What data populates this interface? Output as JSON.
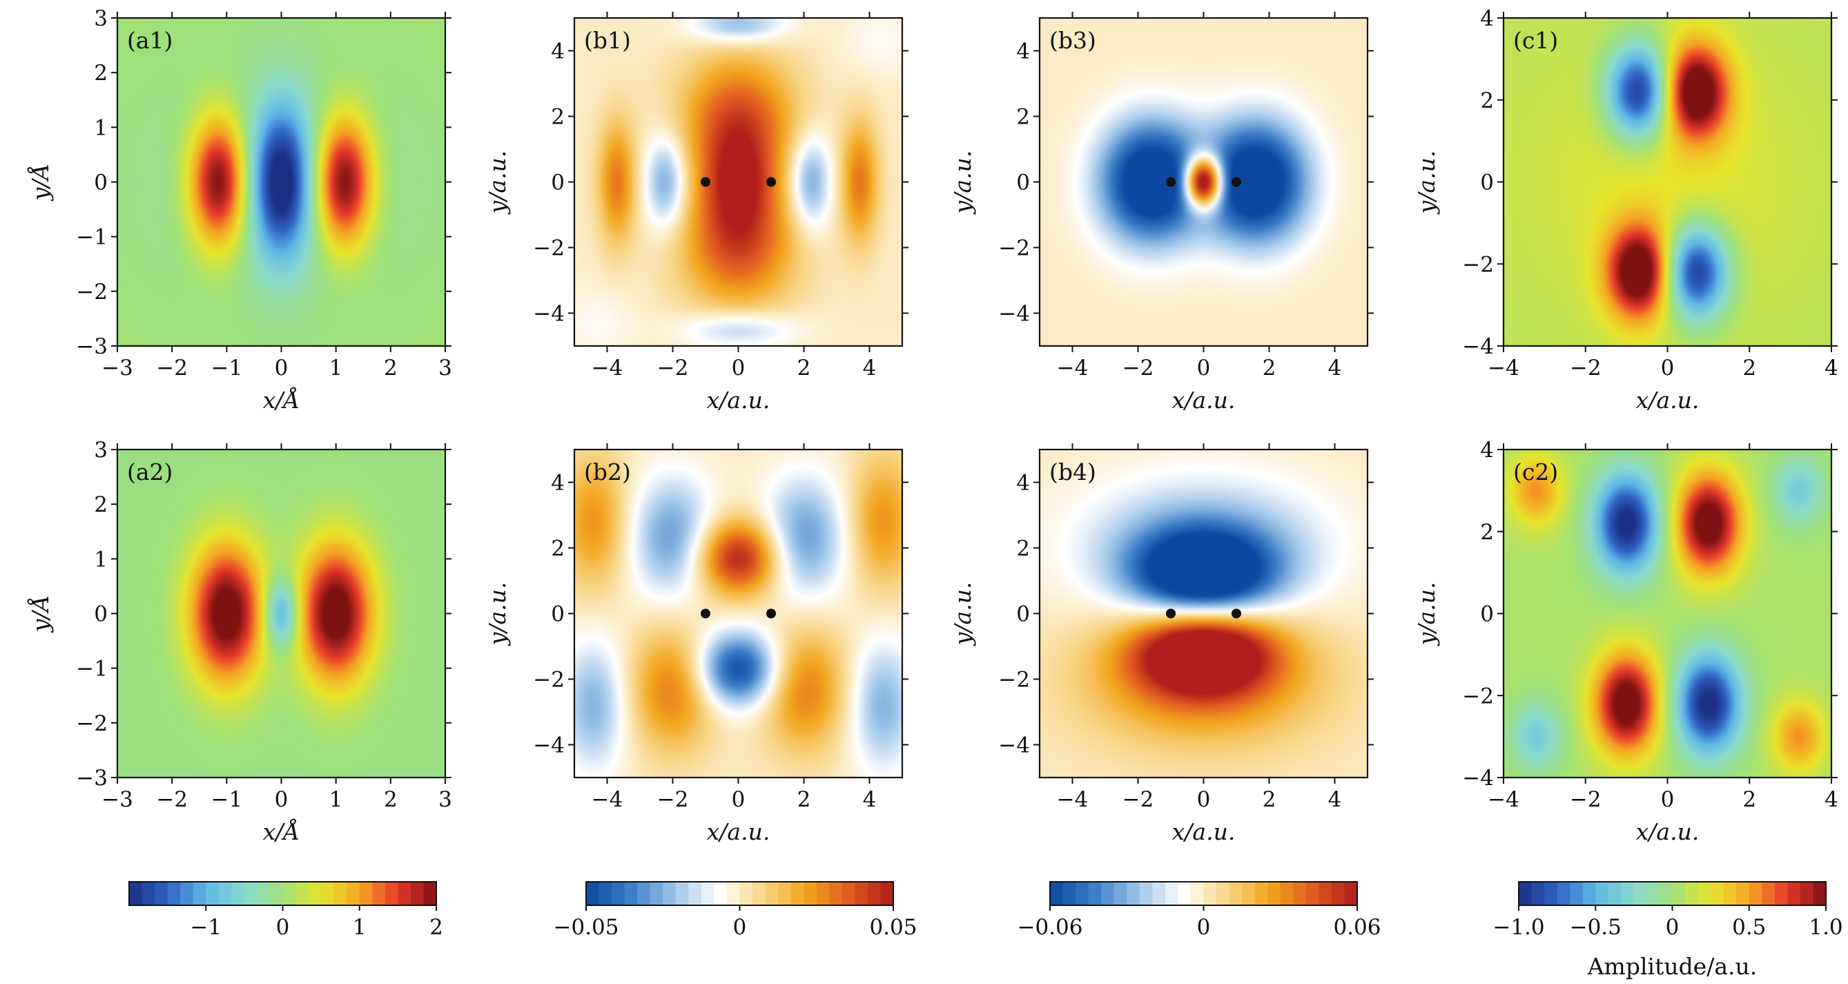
{
  "colormaps": {
    "jet": [
      "#1c2f84",
      "#2f63c4",
      "#5fb7e6",
      "#8ad9d0",
      "#9ee07a",
      "#e7e52c",
      "#f5a623",
      "#e6392b",
      "#7e1212"
    ],
    "bwr": [
      "#0d47a1",
      "#3b7dc6",
      "#9cc3e8",
      "#ffffff",
      "#f8d78a",
      "#f2a51e",
      "#e05a20",
      "#b01d1a"
    ]
  },
  "chart_data": [
    {
      "label": "(a1)",
      "type": "heatmap",
      "colormap": "jet",
      "xlabel": "x/Å",
      "ylabel": "y/Å",
      "xlim": [
        -3,
        3
      ],
      "ylim": [
        -3,
        3
      ],
      "xticks": [
        "−3",
        "−2",
        "−1",
        "0",
        "1",
        "2",
        "3"
      ],
      "yticks": [
        "−3",
        "−2",
        "−1",
        "0",
        "1",
        "2",
        "3"
      ],
      "clim": [
        -2,
        2
      ],
      "background": 0.05,
      "grid": false,
      "features": [
        {
          "x": -1.15,
          "y": 0,
          "sx": 0.38,
          "sy": 0.85,
          "amp": 2.2
        },
        {
          "x": 0,
          "y": 0,
          "sx": 0.38,
          "sy": 0.95,
          "amp": -2.0
        },
        {
          "x": 1.15,
          "y": 0,
          "sx": 0.38,
          "sy": 0.85,
          "amp": 2.2
        },
        {
          "x": 0,
          "y": 0,
          "sx": 1.9,
          "sy": 1.7,
          "amp": -0.35
        }
      ]
    },
    {
      "label": "(a2)",
      "type": "heatmap",
      "colormap": "jet",
      "xlabel": "x/Å",
      "ylabel": "y/Å",
      "xlim": [
        -3,
        3
      ],
      "ylim": [
        -3,
        3
      ],
      "xticks": [
        "−3",
        "−2",
        "−1",
        "0",
        "1",
        "2",
        "3"
      ],
      "yticks": [
        "−3",
        "−2",
        "−1",
        "0",
        "1",
        "2",
        "3"
      ],
      "clim": [
        -2,
        2
      ],
      "background": -0.05,
      "grid": false,
      "features": [
        {
          "x": -1.0,
          "y": 0,
          "sx": 0.48,
          "sy": 0.9,
          "amp": 2.3
        },
        {
          "x": 0,
          "y": 0,
          "sx": 0.22,
          "sy": 0.45,
          "amp": -1.3
        },
        {
          "x": 1.0,
          "y": 0,
          "sx": 0.48,
          "sy": 0.9,
          "amp": 2.3
        }
      ]
    },
    {
      "label": "(b1)",
      "type": "heatmap",
      "colormap": "bwr",
      "xlabel": "x/a.u.",
      "ylabel": "y/a.u.",
      "xlim": [
        -5,
        5
      ],
      "ylim": [
        -5,
        5
      ],
      "xticks": [
        "−4",
        "−2",
        "0",
        "2",
        "4"
      ],
      "yticks": [
        "−4",
        "−2",
        "0",
        "2",
        "4"
      ],
      "clim": [
        -0.05,
        0.05
      ],
      "background": 0,
      "grid": false,
      "nuclei": [
        {
          "x": -1,
          "y": 0
        },
        {
          "x": 1,
          "y": 0
        }
      ],
      "features": [
        {
          "x": 0,
          "y": 1.8,
          "sx": 1.2,
          "sy": 1.4,
          "amp": 0.04
        },
        {
          "x": 0,
          "y": -1.8,
          "sx": 1.2,
          "sy": 1.4,
          "amp": 0.04
        },
        {
          "x": 0,
          "y": 0,
          "sx": 0.7,
          "sy": 1.0,
          "amp": 0.025
        },
        {
          "x": -2.2,
          "y": 0,
          "sx": 0.45,
          "sy": 1.0,
          "amp": -0.03
        },
        {
          "x": 2.2,
          "y": 0,
          "sx": 0.45,
          "sy": 1.0,
          "amp": -0.03
        },
        {
          "x": -3.7,
          "y": 0,
          "sx": 0.4,
          "sy": 1.3,
          "amp": 0.03
        },
        {
          "x": 3.7,
          "y": 0,
          "sx": 0.4,
          "sy": 1.3,
          "amp": 0.03
        },
        {
          "x": 0,
          "y": 4.8,
          "sx": 1.0,
          "sy": 0.4,
          "amp": -0.025
        },
        {
          "x": 0,
          "y": -4.5,
          "sx": 1.2,
          "sy": 0.4,
          "amp": -0.02
        },
        {
          "x": -4.3,
          "y": -4.3,
          "sx": 0.8,
          "sy": 0.8,
          "amp": -0.006
        },
        {
          "x": 4.3,
          "y": 4.3,
          "sx": 0.8,
          "sy": 0.8,
          "amp": -0.006
        }
      ]
    },
    {
      "label": "(b2)",
      "type": "heatmap",
      "colormap": "bwr",
      "xlabel": "x/a.u.",
      "ylabel": "y/a.u.",
      "xlim": [
        -5,
        5
      ],
      "ylim": [
        -5,
        5
      ],
      "xticks": [
        "−4",
        "−2",
        "0",
        "2",
        "4"
      ],
      "yticks": [
        "−4",
        "−2",
        "0",
        "2",
        "4"
      ],
      "clim": [
        -0.05,
        0.05
      ],
      "background": 0,
      "grid": false,
      "nuclei": [
        {
          "x": -1,
          "y": 0
        },
        {
          "x": 1,
          "y": 0
        }
      ],
      "features": [
        {
          "x": 0,
          "y": 1.7,
          "sx": 0.9,
          "sy": 0.8,
          "amp": 0.05
        },
        {
          "x": 0,
          "y": -1.7,
          "sx": 0.9,
          "sy": 0.8,
          "amp": -0.05
        },
        {
          "x": -2.0,
          "y": 2.3,
          "sx": 0.9,
          "sy": 1.3,
          "amp": -0.03
        },
        {
          "x": 2.0,
          "y": 2.3,
          "sx": 0.9,
          "sy": 1.3,
          "amp": -0.03
        },
        {
          "x": -2.0,
          "y": -2.3,
          "sx": 0.9,
          "sy": 1.3,
          "amp": 0.03
        },
        {
          "x": 2.0,
          "y": -2.3,
          "sx": 0.9,
          "sy": 1.3,
          "amp": 0.03
        },
        {
          "x": -4.4,
          "y": 2.8,
          "sx": 0.7,
          "sy": 1.4,
          "amp": 0.025
        },
        {
          "x": 4.4,
          "y": 2.8,
          "sx": 0.7,
          "sy": 1.4,
          "amp": 0.025
        },
        {
          "x": -4.4,
          "y": -2.8,
          "sx": 0.7,
          "sy": 1.4,
          "amp": -0.025
        },
        {
          "x": 4.4,
          "y": -2.8,
          "sx": 0.7,
          "sy": 1.4,
          "amp": -0.025
        }
      ]
    },
    {
      "label": "(b3)",
      "type": "heatmap",
      "colormap": "bwr",
      "xlabel": "x/a.u.",
      "ylabel": "y/a.u.",
      "xlim": [
        -5,
        5
      ],
      "ylim": [
        -5,
        5
      ],
      "xticks": [
        "−4",
        "−2",
        "0",
        "2",
        "4"
      ],
      "yticks": [
        "−4",
        "−2",
        "0",
        "2",
        "4"
      ],
      "clim": [
        -0.06,
        0.06
      ],
      "background": 0,
      "grid": false,
      "nuclei": [
        {
          "x": -1,
          "y": 0
        },
        {
          "x": 1,
          "y": 0
        }
      ],
      "features": [
        {
          "x": -1.6,
          "y": 0,
          "sx": 1.1,
          "sy": 1.3,
          "amp": -0.08
        },
        {
          "x": 1.6,
          "y": 0,
          "sx": 1.1,
          "sy": 1.3,
          "amp": -0.08
        },
        {
          "x": 0,
          "y": 0,
          "sx": 0.4,
          "sy": 0.55,
          "amp": 0.12
        }
      ]
    },
    {
      "label": "(b4)",
      "type": "heatmap",
      "colormap": "bwr",
      "xlabel": "x/a.u.",
      "ylabel": "y/a.u.",
      "xlim": [
        -5,
        5
      ],
      "ylim": [
        -5,
        5
      ],
      "xticks": [
        "−4",
        "−2",
        "0",
        "2",
        "4"
      ],
      "yticks": [
        "−4",
        "−2",
        "0",
        "2",
        "4"
      ],
      "clim": [
        -0.06,
        0.06
      ],
      "background": 0,
      "grid": false,
      "nuclei": [
        {
          "x": -1,
          "y": 0
        },
        {
          "x": 1,
          "y": 0
        }
      ],
      "features": [
        {
          "x": 0,
          "y": 1.2,
          "sx": 1.5,
          "sy": 0.9,
          "amp": -0.08
        },
        {
          "x": 0,
          "y": -1.2,
          "sx": 1.5,
          "sy": 0.9,
          "amp": 0.08
        },
        {
          "x": 0,
          "y": 2.2,
          "sx": 2.6,
          "sy": 1.4,
          "amp": -0.03
        },
        {
          "x": 0,
          "y": -2.2,
          "sx": 2.6,
          "sy": 1.4,
          "amp": 0.03
        }
      ]
    },
    {
      "label": "(c1)",
      "type": "heatmap",
      "colormap": "jet",
      "xlabel": "x/a.u.",
      "ylabel": "y/a.u.",
      "xlim": [
        -4,
        4
      ],
      "ylim": [
        -4,
        4
      ],
      "xticks": [
        "−4",
        "−2",
        "0",
        "2",
        "4"
      ],
      "yticks": [
        "−4",
        "−2",
        "0",
        "2",
        "4"
      ],
      "clim": [
        -1,
        1
      ],
      "background": 0.1,
      "grid": false,
      "features": [
        {
          "x": -0.7,
          "y": 2.2,
          "sx": 0.55,
          "sy": 0.8,
          "amp": -1.1
        },
        {
          "x": 0.7,
          "y": 2.2,
          "sx": 0.55,
          "sy": 0.8,
          "amp": 1.1
        },
        {
          "x": -0.7,
          "y": -2.2,
          "sx": 0.55,
          "sy": 0.8,
          "amp": 1.1
        },
        {
          "x": 0.7,
          "y": -2.2,
          "sx": 0.55,
          "sy": 0.8,
          "amp": -1.1
        },
        {
          "x": 0,
          "y": 0,
          "sx": 2.3,
          "sy": 2.3,
          "amp": 0.15
        }
      ]
    },
    {
      "label": "(c2)",
      "type": "heatmap",
      "colormap": "jet",
      "xlabel": "x/a.u.",
      "ylabel": "y/a.u.",
      "xlim": [
        -4,
        4
      ],
      "ylim": [
        -4,
        4
      ],
      "xticks": [
        "−4",
        "−2",
        "0",
        "2",
        "4"
      ],
      "yticks": [
        "−4",
        "−2",
        "0",
        "2",
        "4"
      ],
      "clim": [
        -1,
        1
      ],
      "background": 0.05,
      "grid": false,
      "features": [
        {
          "x": -1.0,
          "y": 2.2,
          "sx": 0.55,
          "sy": 0.85,
          "amp": -1.1
        },
        {
          "x": 1.0,
          "y": 2.2,
          "sx": 0.55,
          "sy": 0.85,
          "amp": 1.1
        },
        {
          "x": -1.0,
          "y": -2.2,
          "sx": 0.55,
          "sy": 0.85,
          "amp": 1.1
        },
        {
          "x": 1.0,
          "y": -2.2,
          "sx": 0.55,
          "sy": 0.85,
          "amp": -1.1
        },
        {
          "x": -3.2,
          "y": 3.0,
          "sx": 0.45,
          "sy": 0.6,
          "amp": 0.5
        },
        {
          "x": 3.2,
          "y": 3.0,
          "sx": 0.45,
          "sy": 0.6,
          "amp": -0.4
        },
        {
          "x": -3.2,
          "y": -3.0,
          "sx": 0.45,
          "sy": 0.6,
          "amp": -0.4
        },
        {
          "x": 3.2,
          "y": -3.0,
          "sx": 0.45,
          "sy": 0.6,
          "amp": 0.5
        }
      ]
    }
  ],
  "colorbars": [
    {
      "colormap": "jet",
      "clim": [
        -2,
        2
      ],
      "ticks": [
        {
          "v": -1,
          "label": "−1"
        },
        {
          "v": 0,
          "label": "0"
        },
        {
          "v": 1,
          "label": "1"
        },
        {
          "v": 2,
          "label": "2"
        }
      ],
      "label": ""
    },
    {
      "colormap": "bwr",
      "clim": [
        -0.05,
        0.05
      ],
      "ticks": [
        {
          "v": -0.05,
          "label": "−0.05"
        },
        {
          "v": 0,
          "label": "0"
        },
        {
          "v": 0.05,
          "label": "0.05"
        }
      ],
      "label": ""
    },
    {
      "colormap": "bwr",
      "clim": [
        -0.06,
        0.06
      ],
      "ticks": [
        {
          "v": -0.06,
          "label": "−0.06"
        },
        {
          "v": 0,
          "label": "0"
        },
        {
          "v": 0.06,
          "label": "0.06"
        }
      ],
      "label": ""
    },
    {
      "colormap": "jet",
      "clim": [
        -1,
        1
      ],
      "ticks": [
        {
          "v": -1,
          "label": "−1.0"
        },
        {
          "v": -0.5,
          "label": "−0.5"
        },
        {
          "v": 0,
          "label": "0"
        },
        {
          "v": 0.5,
          "label": "0.5"
        },
        {
          "v": 1,
          "label": "1.0"
        }
      ],
      "label": "Amplitude/a.u."
    }
  ]
}
